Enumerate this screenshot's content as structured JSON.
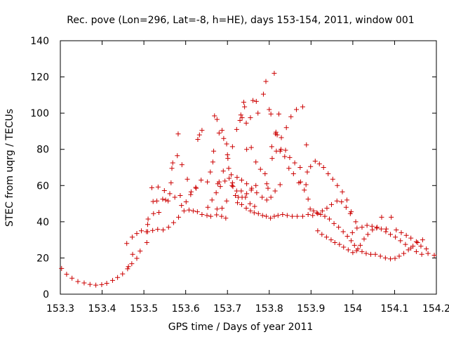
{
  "chart_data": {
    "type": "scatter",
    "title": "Rec. pove (Lon=296, Lat=-8, h=HE), days 153-154, 2011, window 001",
    "xlabel": "GPS time / Days of year 2011",
    "ylabel": "STEC from uqrg / TECUs",
    "xlim": [
      153.3,
      154.2
    ],
    "ylim": [
      0,
      140
    ],
    "x_ticks": [
      "153.3",
      "153.4",
      "153.5",
      "153.6",
      "153.7",
      "153.8",
      "153.9",
      "154",
      "154.1",
      "154.2"
    ],
    "y_ticks": [
      "0",
      "20",
      "40",
      "60",
      "80",
      "100",
      "120",
      "140"
    ],
    "grid": false,
    "marker": "+",
    "colors": {
      "points": "#cc0000",
      "axes": "#000000"
    },
    "series": [
      {
        "points": [
          [
            153.303,
            14.2
          ],
          [
            153.315,
            11.0
          ],
          [
            153.328,
            8.8
          ],
          [
            153.342,
            7.0
          ],
          [
            153.357,
            6.2
          ],
          [
            153.371,
            5.4
          ],
          [
            153.385,
            5.0
          ],
          [
            153.399,
            5.3
          ],
          [
            153.411,
            6.0
          ],
          [
            153.425,
            7.6
          ],
          [
            153.437,
            9.2
          ],
          [
            153.449,
            11.2
          ],
          [
            153.461,
            14.0
          ],
          [
            153.463,
            15.2
          ],
          [
            153.471,
            16.8
          ],
          [
            153.473,
            22.0
          ],
          [
            153.483,
            19.8
          ],
          [
            153.491,
            23.8
          ],
          [
            153.459,
            28.0
          ],
          [
            153.472,
            31.5
          ],
          [
            153.483,
            33.5
          ],
          [
            153.494,
            35.0
          ],
          [
            153.506,
            34.5
          ],
          [
            153.507,
            28.5
          ],
          [
            153.509,
            38.5
          ],
          [
            153.51,
            41.5
          ],
          [
            153.523,
            44.5
          ],
          [
            153.536,
            45.2
          ],
          [
            153.522,
            51.2
          ],
          [
            153.531,
            51.5
          ],
          [
            153.545,
            52.5
          ],
          [
            153.552,
            52.0
          ],
          [
            153.519,
            58.8
          ],
          [
            153.534,
            59.2
          ],
          [
            153.549,
            57.2
          ],
          [
            153.562,
            55.5
          ],
          [
            153.565,
            61.5
          ],
          [
            153.558,
            51.5
          ],
          [
            153.574,
            53.5
          ],
          [
            153.587,
            54.5
          ],
          [
            153.59,
            49.0
          ],
          [
            153.601,
            51.0
          ],
          [
            153.612,
            55.0
          ],
          [
            153.624,
            59.0
          ],
          [
            153.637,
            63.0
          ],
          [
            153.509,
            34.5
          ],
          [
            153.521,
            35.2
          ],
          [
            153.533,
            35.8
          ],
          [
            153.546,
            35.5
          ],
          [
            153.559,
            37.0
          ],
          [
            153.571,
            39.5
          ],
          [
            153.583,
            42.5
          ],
          [
            153.596,
            46.0
          ],
          [
            153.608,
            46.5
          ],
          [
            153.618,
            46.0
          ],
          [
            153.628,
            45.5
          ],
          [
            153.639,
            44.0
          ],
          [
            153.651,
            43.5
          ],
          [
            153.66,
            43.0
          ],
          [
            153.674,
            43.8
          ],
          [
            153.686,
            43.0
          ],
          [
            153.696,
            42.0
          ],
          [
            153.567,
            69.5
          ],
          [
            153.569,
            72.5
          ],
          [
            153.58,
            76.5
          ],
          [
            153.582,
            88.5
          ],
          [
            153.591,
            71.5
          ],
          [
            153.604,
            63.5
          ],
          [
            153.613,
            56.5
          ],
          [
            153.625,
            58.5
          ],
          [
            153.629,
            85.5
          ],
          [
            153.633,
            88.0
          ],
          [
            153.639,
            90.5
          ],
          [
            153.652,
            62.0
          ],
          [
            153.659,
            67.5
          ],
          [
            153.665,
            73.0
          ],
          [
            153.667,
            79.0
          ],
          [
            153.669,
            98.5
          ],
          [
            153.675,
            96.5
          ],
          [
            153.68,
            89.0
          ],
          [
            153.687,
            90.5
          ],
          [
            153.691,
            86.0
          ],
          [
            153.698,
            83.0
          ],
          [
            153.7,
            77.0
          ],
          [
            153.703,
            69.5
          ],
          [
            153.709,
            66.0
          ],
          [
            153.713,
            59.5
          ],
          [
            153.719,
            54.5
          ],
          [
            153.726,
            53.5
          ],
          [
            153.735,
            53.5
          ],
          [
            153.746,
            55.5
          ],
          [
            153.757,
            57.5
          ],
          [
            153.768,
            60.0
          ],
          [
            153.653,
            48.0
          ],
          [
            153.663,
            52.0
          ],
          [
            153.673,
            56.0
          ],
          [
            153.683,
            59.5
          ],
          [
            153.694,
            62.5
          ],
          [
            153.704,
            64.0
          ],
          [
            153.711,
            60.0
          ],
          [
            153.722,
            57.0
          ],
          [
            153.733,
            57.0
          ],
          [
            153.743,
            53.5
          ],
          [
            153.754,
            50.0
          ],
          [
            153.765,
            48.5
          ],
          [
            153.675,
            47.0
          ],
          [
            153.687,
            47.5
          ],
          [
            153.698,
            51.5
          ],
          [
            153.712,
            61.5
          ],
          [
            153.723,
            64.5
          ],
          [
            153.734,
            63.0
          ],
          [
            153.746,
            61.0
          ],
          [
            153.758,
            58.5
          ],
          [
            153.77,
            56.0
          ],
          [
            153.783,
            53.5
          ],
          [
            153.794,
            52.0
          ],
          [
            153.804,
            53.5
          ],
          [
            153.814,
            57.0
          ],
          [
            153.826,
            60.5
          ],
          [
            153.677,
            61.0
          ],
          [
            153.68,
            62.0
          ],
          [
            153.69,
            68.0
          ],
          [
            153.701,
            75.0
          ],
          [
            153.712,
            81.5
          ],
          [
            153.722,
            91.0
          ],
          [
            153.73,
            96.0
          ],
          [
            153.732,
            99.0
          ],
          [
            153.735,
            97.5
          ],
          [
            153.739,
            106.0
          ],
          [
            153.741,
            103.5
          ],
          [
            153.745,
            94.5
          ],
          [
            153.755,
            97.5
          ],
          [
            153.761,
            107.0
          ],
          [
            153.769,
            106.5
          ],
          [
            153.773,
            100.0
          ],
          [
            153.786,
            110.5
          ],
          [
            153.792,
            117.5
          ],
          [
            153.8,
            102.0
          ],
          [
            153.804,
            99.5
          ],
          [
            153.812,
            122.0
          ],
          [
            153.816,
            89.5
          ],
          [
            153.819,
            88.0
          ],
          [
            153.823,
            99.5
          ],
          [
            153.829,
            86.5
          ],
          [
            153.841,
            92.0
          ],
          [
            153.852,
            98.0
          ],
          [
            153.865,
            102.0
          ],
          [
            153.88,
            103.5
          ],
          [
            153.889,
            82.5
          ],
          [
            153.746,
            80.0
          ],
          [
            153.757,
            81.0
          ],
          [
            153.768,
            73.0
          ],
          [
            153.779,
            69.0
          ],
          [
            153.79,
            66.5
          ],
          [
            153.794,
            61.0
          ],
          [
            153.797,
            58.5
          ],
          [
            153.807,
            75.0
          ],
          [
            153.817,
            79.0
          ],
          [
            153.828,
            80.0
          ],
          [
            153.839,
            79.5
          ],
          [
            153.849,
            75.5
          ],
          [
            153.861,
            72.5
          ],
          [
            153.874,
            70.0
          ],
          [
            153.875,
            62.0
          ],
          [
            153.888,
            60.5
          ],
          [
            153.891,
            67.5
          ],
          [
            153.899,
            70.5
          ],
          [
            153.91,
            73.5
          ],
          [
            153.92,
            72.0
          ],
          [
            153.93,
            70.0
          ],
          [
            153.941,
            66.5
          ],
          [
            153.952,
            63.5
          ],
          [
            153.963,
            60.0
          ],
          [
            153.975,
            56.5
          ],
          [
            153.986,
            52.0
          ],
          [
            153.996,
            45.5
          ],
          [
            154.007,
            40.0
          ],
          [
            153.724,
            50.5
          ],
          [
            153.734,
            49.5
          ],
          [
            153.745,
            47.5
          ],
          [
            153.755,
            46.0
          ],
          [
            153.764,
            45.0
          ],
          [
            153.774,
            44.5
          ],
          [
            153.784,
            43.5
          ],
          [
            153.793,
            43.0
          ],
          [
            153.803,
            42.0
          ],
          [
            153.812,
            43.0
          ],
          [
            153.821,
            43.5
          ],
          [
            153.832,
            44.0
          ],
          [
            153.843,
            43.5
          ],
          [
            153.855,
            43.0
          ],
          [
            153.867,
            43.0
          ],
          [
            153.88,
            43.0
          ],
          [
            153.893,
            44.0
          ],
          [
            153.904,
            43.5
          ],
          [
            153.916,
            44.5
          ],
          [
            153.927,
            46.0
          ],
          [
            153.938,
            47.5
          ],
          [
            153.949,
            49.5
          ],
          [
            153.962,
            51.5
          ],
          [
            153.973,
            51.0
          ],
          [
            153.984,
            48.0
          ],
          [
            153.994,
            44.5
          ],
          [
            153.806,
            81.5
          ],
          [
            153.815,
            88.5
          ],
          [
            153.826,
            79.0
          ],
          [
            153.837,
            76.0
          ],
          [
            153.847,
            69.5
          ],
          [
            153.858,
            66.5
          ],
          [
            153.871,
            61.5
          ],
          [
            153.884,
            57.5
          ],
          [
            153.893,
            52.5
          ],
          [
            153.898,
            47.0
          ],
          [
            153.906,
            46.0
          ],
          [
            153.914,
            45.0
          ],
          [
            153.923,
            44.0
          ],
          [
            153.933,
            43.0
          ],
          [
            153.944,
            41.5
          ],
          [
            153.955,
            39.0
          ],
          [
            153.966,
            37.0
          ],
          [
            153.977,
            34.5
          ],
          [
            153.987,
            32.0
          ],
          [
            153.996,
            29.5
          ],
          [
            154.004,
            27.0
          ],
          [
            154.012,
            25.0
          ],
          [
            154.022,
            23.5
          ],
          [
            154.032,
            22.5
          ],
          [
            154.043,
            22.0
          ],
          [
            154.054,
            22.0
          ],
          [
            154.066,
            21.0
          ],
          [
            154.078,
            20.0
          ],
          [
            154.09,
            19.5
          ],
          [
            154.101,
            19.8
          ],
          [
            154.111,
            21.0
          ],
          [
            154.122,
            22.5
          ],
          [
            154.133,
            24.5
          ],
          [
            154.144,
            26.5
          ],
          [
            154.155,
            28.5
          ],
          [
            154.167,
            30.0
          ],
          [
            153.916,
            35.0
          ],
          [
            153.926,
            33.0
          ],
          [
            153.937,
            31.5
          ],
          [
            153.948,
            30.0
          ],
          [
            153.957,
            28.5
          ],
          [
            153.968,
            27.5
          ],
          [
            153.978,
            26.0
          ],
          [
            153.989,
            24.5
          ],
          [
            154.0,
            23.0
          ],
          [
            154.009,
            24.0
          ],
          [
            154.018,
            27.0
          ],
          [
            154.027,
            30.5
          ],
          [
            154.036,
            33.0
          ],
          [
            154.047,
            35.5
          ],
          [
            154.057,
            36.5
          ],
          [
            154.068,
            36.0
          ],
          [
            154.079,
            34.5
          ],
          [
            154.09,
            33.0
          ],
          [
            154.102,
            31.5
          ],
          [
            154.114,
            29.5
          ],
          [
            154.126,
            27.5
          ],
          [
            154.139,
            25.5
          ],
          [
            154.152,
            23.5
          ],
          [
            154.165,
            22.0
          ],
          [
            154.18,
            22.5
          ],
          [
            154.195,
            21.5
          ],
          [
            153.999,
            34.0
          ],
          [
            154.01,
            36.5
          ],
          [
            154.022,
            37.0
          ],
          [
            154.034,
            38.0
          ],
          [
            154.046,
            37.5
          ],
          [
            154.058,
            37.0
          ],
          [
            154.069,
            42.5
          ],
          [
            154.08,
            36.0
          ],
          [
            154.092,
            42.5
          ],
          [
            154.104,
            35.5
          ],
          [
            154.116,
            34.0
          ],
          [
            154.128,
            32.5
          ],
          [
            154.139,
            31.0
          ],
          [
            154.152,
            29.0
          ],
          [
            154.163,
            26.5
          ],
          [
            154.176,
            25.0
          ]
        ]
      }
    ]
  }
}
